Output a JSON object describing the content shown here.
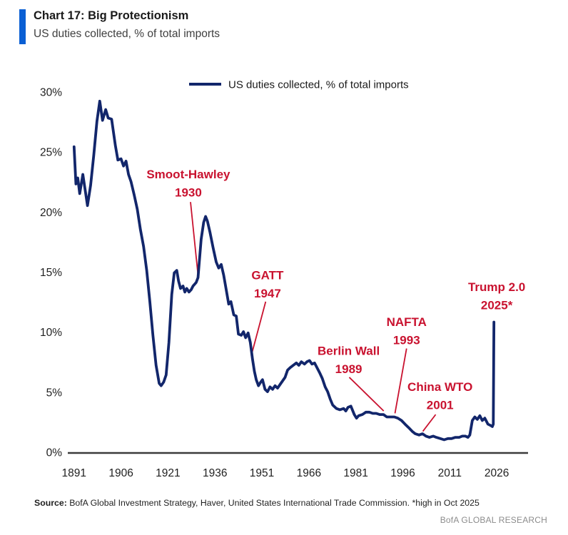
{
  "header": {
    "title": "Chart 17: Big Protectionism",
    "subtitle": "US duties collected, % of total imports",
    "accent_bar_color": "#0a5fd4"
  },
  "legend": {
    "label": "US duties collected, % of total imports"
  },
  "footer": {
    "source_label": "Source:",
    "source_text": " BofA Global Investment Strategy, Haver, United States International Trade Commission. *high in Oct 2025",
    "brand": "BofA GLOBAL RESEARCH"
  },
  "chart_data": {
    "type": "line",
    "title": "Chart 17: Big Protectionism",
    "subtitle": "US duties collected, % of total imports",
    "xlabel": "",
    "ylabel": "US duties collected, % of total imports",
    "xlim": [
      1889,
      2036
    ],
    "ylim": [
      0,
      30
    ],
    "grid": false,
    "legend_position": "top-center",
    "line_color": "#12266b",
    "annotation_color": "#c9122f",
    "axis_color": "#3b3b3b",
    "tick_label_color": "#1f1f1f",
    "x_ticks": [
      {
        "value": 1891,
        "label": "1891"
      },
      {
        "value": 1906,
        "label": "1906"
      },
      {
        "value": 1921,
        "label": "1921"
      },
      {
        "value": 1936,
        "label": "1936"
      },
      {
        "value": 1951,
        "label": "1951"
      },
      {
        "value": 1966,
        "label": "1966"
      },
      {
        "value": 1981,
        "label": "1981"
      },
      {
        "value": 1996,
        "label": "1996"
      },
      {
        "value": 2011,
        "label": "2011"
      },
      {
        "value": 2026,
        "label": "2026"
      }
    ],
    "y_ticks": [
      {
        "value": 0,
        "label": "0%"
      },
      {
        "value": 5,
        "label": "5%"
      },
      {
        "value": 10,
        "label": "10%"
      },
      {
        "value": 15,
        "label": "15%"
      },
      {
        "value": 20,
        "label": "20%"
      },
      {
        "value": 25,
        "label": "25%"
      },
      {
        "value": 30,
        "label": "30%"
      }
    ],
    "series": [
      {
        "name": "US duties collected, % of total imports",
        "color": "#12266b",
        "points": [
          [
            1891.0,
            25.5
          ],
          [
            1891.6,
            22.4
          ],
          [
            1892.2,
            22.9
          ],
          [
            1892.8,
            21.6
          ],
          [
            1893.8,
            23.2
          ],
          [
            1894.6,
            21.8
          ],
          [
            1895.3,
            20.6
          ],
          [
            1896.3,
            22.3
          ],
          [
            1897.3,
            24.8
          ],
          [
            1898.3,
            27.6
          ],
          [
            1899.2,
            29.3
          ],
          [
            1900.1,
            27.7
          ],
          [
            1901.1,
            28.6
          ],
          [
            1901.9,
            27.9
          ],
          [
            1903.0,
            27.8
          ],
          [
            1904.2,
            25.6
          ],
          [
            1905.0,
            24.4
          ],
          [
            1906.0,
            24.5
          ],
          [
            1906.8,
            23.9
          ],
          [
            1907.6,
            24.3
          ],
          [
            1908.4,
            23.2
          ],
          [
            1909.2,
            22.6
          ],
          [
            1910.2,
            21.5
          ],
          [
            1911.2,
            20.3
          ],
          [
            1912.2,
            18.6
          ],
          [
            1913.2,
            17.2
          ],
          [
            1914.2,
            15.2
          ],
          [
            1915.2,
            12.6
          ],
          [
            1916.2,
            9.8
          ],
          [
            1917.2,
            7.3
          ],
          [
            1918.2,
            5.8
          ],
          [
            1918.8,
            5.6
          ],
          [
            1919.6,
            5.9
          ],
          [
            1920.4,
            6.5
          ],
          [
            1921.3,
            9.2
          ],
          [
            1922.2,
            13.2
          ],
          [
            1923.0,
            15.0
          ],
          [
            1923.8,
            15.2
          ],
          [
            1924.4,
            14.3
          ],
          [
            1925.0,
            13.7
          ],
          [
            1925.8,
            13.9
          ],
          [
            1926.4,
            13.4
          ],
          [
            1927.0,
            13.7
          ],
          [
            1927.7,
            13.4
          ],
          [
            1928.4,
            13.6
          ],
          [
            1929.0,
            13.9
          ],
          [
            1930.0,
            14.2
          ],
          [
            1930.6,
            14.6
          ],
          [
            1931.6,
            17.8
          ],
          [
            1932.4,
            19.2
          ],
          [
            1933.0,
            19.7
          ],
          [
            1933.6,
            19.3
          ],
          [
            1934.4,
            18.4
          ],
          [
            1935.4,
            17.1
          ],
          [
            1936.4,
            15.9
          ],
          [
            1937.2,
            15.4
          ],
          [
            1938.0,
            15.7
          ],
          [
            1938.8,
            14.8
          ],
          [
            1939.6,
            13.6
          ],
          [
            1940.4,
            12.4
          ],
          [
            1941.1,
            12.6
          ],
          [
            1942.0,
            11.5
          ],
          [
            1942.8,
            11.4
          ],
          [
            1943.5,
            9.9
          ],
          [
            1944.4,
            9.8
          ],
          [
            1945.1,
            10.1
          ],
          [
            1945.8,
            9.6
          ],
          [
            1946.6,
            10.0
          ],
          [
            1947.3,
            9.2
          ],
          [
            1948.0,
            7.8
          ],
          [
            1948.6,
            6.8
          ],
          [
            1949.2,
            6.1
          ],
          [
            1949.9,
            5.6
          ],
          [
            1950.6,
            5.9
          ],
          [
            1951.2,
            6.1
          ],
          [
            1952.0,
            5.3
          ],
          [
            1952.8,
            5.1
          ],
          [
            1953.6,
            5.5
          ],
          [
            1954.4,
            5.3
          ],
          [
            1955.2,
            5.6
          ],
          [
            1956.0,
            5.4
          ],
          [
            1956.8,
            5.7
          ],
          [
            1957.6,
            6.0
          ],
          [
            1958.4,
            6.3
          ],
          [
            1959.2,
            6.9
          ],
          [
            1960.0,
            7.1
          ],
          [
            1961.0,
            7.3
          ],
          [
            1962.0,
            7.5
          ],
          [
            1962.8,
            7.3
          ],
          [
            1963.6,
            7.6
          ],
          [
            1964.6,
            7.4
          ],
          [
            1965.4,
            7.6
          ],
          [
            1966.2,
            7.7
          ],
          [
            1967.0,
            7.4
          ],
          [
            1967.8,
            7.5
          ],
          [
            1968.6,
            7.1
          ],
          [
            1969.4,
            6.7
          ],
          [
            1970.3,
            6.2
          ],
          [
            1971.2,
            5.5
          ],
          [
            1972.0,
            5.1
          ],
          [
            1972.8,
            4.5
          ],
          [
            1973.6,
            4.0
          ],
          [
            1974.8,
            3.7
          ],
          [
            1975.9,
            3.6
          ],
          [
            1977.1,
            3.7
          ],
          [
            1977.8,
            3.5
          ],
          [
            1978.5,
            3.8
          ],
          [
            1979.4,
            3.9
          ],
          [
            1980.5,
            3.2
          ],
          [
            1981.2,
            2.9
          ],
          [
            1981.9,
            3.1
          ],
          [
            1983.1,
            3.2
          ],
          [
            1984.2,
            3.4
          ],
          [
            1985.3,
            3.4
          ],
          [
            1986.4,
            3.3
          ],
          [
            1987.5,
            3.3
          ],
          [
            1988.6,
            3.2
          ],
          [
            1989.8,
            3.2
          ],
          [
            1990.9,
            3.0
          ],
          [
            1992.1,
            3.0
          ],
          [
            1993.3,
            3.0
          ],
          [
            1994.4,
            2.9
          ],
          [
            1995.6,
            2.7
          ],
          [
            1996.7,
            2.4
          ],
          [
            1997.9,
            2.1
          ],
          [
            1999.0,
            1.8
          ],
          [
            2000.0,
            1.6
          ],
          [
            2001.2,
            1.5
          ],
          [
            2002.3,
            1.6
          ],
          [
            2003.4,
            1.4
          ],
          [
            2004.5,
            1.3
          ],
          [
            2005.7,
            1.4
          ],
          [
            2006.7,
            1.3
          ],
          [
            2008.0,
            1.2
          ],
          [
            2009.2,
            1.1
          ],
          [
            2010.4,
            1.2
          ],
          [
            2011.6,
            1.2
          ],
          [
            2012.8,
            1.3
          ],
          [
            2014.0,
            1.3
          ],
          [
            2015.0,
            1.4
          ],
          [
            2016.0,
            1.4
          ],
          [
            2016.8,
            1.3
          ],
          [
            2017.4,
            1.5
          ],
          [
            2018.2,
            2.7
          ],
          [
            2019.0,
            3.0
          ],
          [
            2019.8,
            2.8
          ],
          [
            2020.6,
            3.1
          ],
          [
            2021.4,
            2.7
          ],
          [
            2022.2,
            2.9
          ],
          [
            2023.2,
            2.4
          ],
          [
            2024.0,
            2.3
          ],
          [
            2024.6,
            2.2
          ],
          [
            2024.9,
            2.4
          ],
          [
            2025.1,
            10.9
          ]
        ]
      }
    ],
    "annotations": [
      {
        "id": "smoot-hawley",
        "lines": [
          "Smoot-Hawley",
          "1930"
        ],
        "label_at": {
          "year": 1927.5,
          "pct": 23.2
        },
        "pointer": {
          "from": {
            "year": 1928.2,
            "pct": 20.9
          },
          "to": {
            "year": 1930.6,
            "pct": 14.8
          }
        }
      },
      {
        "id": "gatt",
        "lines": [
          "GATT",
          "1947"
        ],
        "label_at": {
          "year": 1952.8,
          "pct": 14.8
        },
        "pointer": {
          "from": {
            "year": 1952.2,
            "pct": 12.6
          },
          "to": {
            "year": 1947.6,
            "pct": 8.1
          }
        }
      },
      {
        "id": "berlin-wall",
        "lines": [
          "Berlin Wall",
          "1989"
        ],
        "label_at": {
          "year": 1978.7,
          "pct": 8.5
        },
        "pointer": {
          "from": {
            "year": 1978.9,
            "pct": 6.3
          },
          "to": {
            "year": 1989.9,
            "pct": 3.5
          }
        }
      },
      {
        "id": "nafta",
        "lines": [
          "NAFTA",
          "1993"
        ],
        "label_at": {
          "year": 1997.2,
          "pct": 10.9
        },
        "pointer": {
          "from": {
            "year": 1997.2,
            "pct": 8.7
          },
          "to": {
            "year": 1993.5,
            "pct": 3.3
          }
        }
      },
      {
        "id": "china-wto",
        "lines": [
          "China WTO",
          "2001"
        ],
        "label_at": {
          "year": 2007.9,
          "pct": 5.5
        },
        "pointer": {
          "from": {
            "year": 2006.5,
            "pct": 3.2
          },
          "to": {
            "year": 2002.4,
            "pct": 1.8
          }
        }
      },
      {
        "id": "trump-2-0",
        "lines": [
          "Trump 2.0",
          "2025*"
        ],
        "label_at": {
          "year": 2026.0,
          "pct": 13.8
        },
        "pointer": null
      }
    ]
  }
}
